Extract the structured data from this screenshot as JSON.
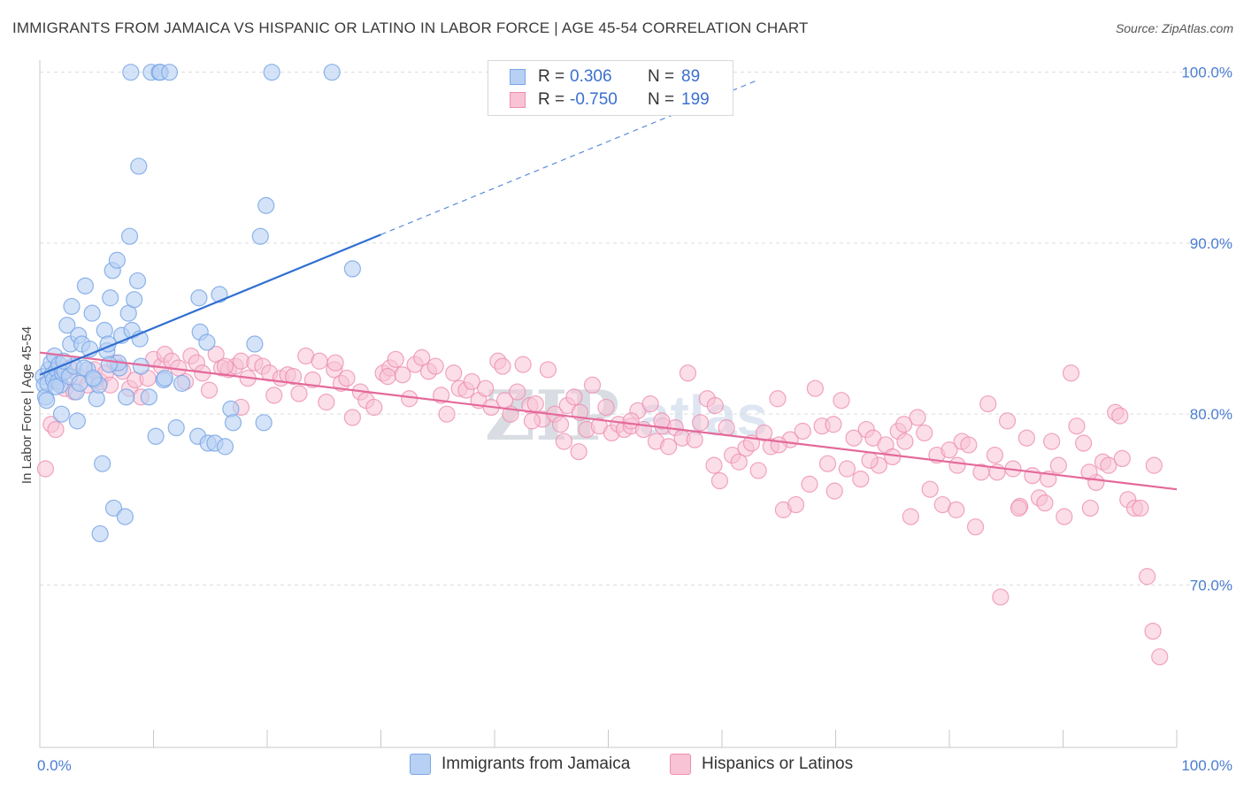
{
  "title": "IMMIGRANTS FROM JAMAICA VS HISPANIC OR LATINO IN LABOR FORCE | AGE 45-54 CORRELATION CHART",
  "source": "Source: ZipAtlas.com",
  "watermark": {
    "left": "ZIP",
    "right": "atlas"
  },
  "colors": {
    "blue": "#7aa7e6",
    "blue_fill": "#b7d0f3",
    "blue_line": "#2f6fd1",
    "pink": "#ee8fb0",
    "pink_fill": "#f7c3d5",
    "pink_line": "#e4699a",
    "tick": "#4a7dd1"
  },
  "legend": [
    {
      "r_label": "R =",
      "r_value": "0.306",
      "n_label": "N =",
      "n_value": "89"
    },
    {
      "r_label": "R =",
      "r_value": "-0.750",
      "n_label": "N =",
      "n_value": "199"
    }
  ],
  "bottom_legend": [
    "Immigrants from Jamaica",
    "Hispanics or Latinos"
  ],
  "chart_data": {
    "type": "scatter",
    "xlabel": "",
    "ylabel": "In Labor Force | Age 45-54",
    "xlim": [
      0,
      100
    ],
    "ylim": [
      60.5,
      100.5
    ],
    "x_tick_labels": [
      "0.0%",
      "100.0%"
    ],
    "y_ticks": [
      70,
      80,
      90,
      100
    ],
    "y_tick_labels": [
      "70.0%",
      "80.0%",
      "90.0%",
      "100.0%"
    ],
    "grid": true,
    "series": [
      {
        "name": "Immigrants from Jamaica",
        "trend": {
          "x0": 0,
          "y0": 82.3,
          "x1": 30,
          "y1": 90.5,
          "dashed_to_x": 63,
          "dashed_to_y": 99.5
        },
        "points": [
          [
            0.3,
            82.2
          ],
          [
            0.4,
            81.7
          ],
          [
            0.5,
            81.0
          ],
          [
            0.6,
            80.8
          ],
          [
            0.7,
            81.8
          ],
          [
            0.8,
            82.6
          ],
          [
            1.0,
            83.0
          ],
          [
            1.1,
            82.3
          ],
          [
            1.2,
            82.0
          ],
          [
            1.3,
            83.4
          ],
          [
            1.5,
            82.6
          ],
          [
            1.6,
            81.9
          ],
          [
            1.7,
            82.9
          ],
          [
            1.8,
            81.7
          ],
          [
            1.9,
            80.0
          ],
          [
            2.0,
            82.4
          ],
          [
            2.2,
            82.5
          ],
          [
            2.4,
            85.2
          ],
          [
            2.6,
            82.2
          ],
          [
            2.7,
            84.1
          ],
          [
            2.8,
            86.3
          ],
          [
            3.0,
            82.8
          ],
          [
            3.2,
            81.3
          ],
          [
            3.3,
            79.6
          ],
          [
            3.4,
            84.6
          ],
          [
            3.5,
            81.8
          ],
          [
            3.7,
            84.1
          ],
          [
            4.0,
            87.5
          ],
          [
            4.2,
            82.6
          ],
          [
            4.4,
            83.8
          ],
          [
            4.6,
            85.9
          ],
          [
            4.8,
            82.0
          ],
          [
            5.0,
            80.9
          ],
          [
            5.2,
            81.7
          ],
          [
            5.5,
            77.1
          ],
          [
            5.7,
            84.9
          ],
          [
            5.9,
            83.7
          ],
          [
            6.0,
            84.1
          ],
          [
            6.2,
            86.8
          ],
          [
            6.4,
            88.4
          ],
          [
            6.5,
            74.5
          ],
          [
            6.8,
            89.0
          ],
          [
            7.0,
            82.7
          ],
          [
            7.2,
            84.6
          ],
          [
            7.5,
            74.0
          ],
          [
            7.6,
            81.0
          ],
          [
            7.8,
            85.9
          ],
          [
            7.9,
            90.4
          ],
          [
            8.0,
            100.0
          ],
          [
            8.1,
            84.9
          ],
          [
            8.3,
            86.7
          ],
          [
            8.6,
            87.8
          ],
          [
            8.7,
            94.5
          ],
          [
            8.8,
            84.4
          ],
          [
            8.9,
            82.8
          ],
          [
            9.6,
            81.0
          ],
          [
            10.2,
            78.7
          ],
          [
            9.8,
            100.0
          ],
          [
            10.5,
            100.0
          ],
          [
            10.6,
            100.0
          ],
          [
            10.9,
            82.0
          ],
          [
            11.0,
            82.1
          ],
          [
            11.4,
            100.0
          ],
          [
            12.0,
            79.2
          ],
          [
            12.5,
            81.8
          ],
          [
            13.9,
            78.7
          ],
          [
            14.0,
            86.8
          ],
          [
            14.1,
            84.8
          ],
          [
            14.7,
            84.2
          ],
          [
            14.8,
            78.3
          ],
          [
            15.4,
            78.3
          ],
          [
            15.8,
            87.0
          ],
          [
            16.3,
            78.1
          ],
          [
            16.8,
            80.3
          ],
          [
            17.0,
            79.5
          ],
          [
            18.9,
            84.1
          ],
          [
            19.4,
            90.4
          ],
          [
            19.7,
            79.5
          ],
          [
            19.9,
            92.2
          ],
          [
            20.4,
            100.0
          ],
          [
            25.7,
            100.0
          ],
          [
            27.5,
            88.5
          ],
          [
            5.3,
            73.0
          ],
          [
            3.9,
            82.7
          ],
          [
            6.9,
            83.0
          ],
          [
            1.4,
            81.6
          ],
          [
            2.1,
            83.1
          ],
          [
            4.7,
            82.1
          ],
          [
            6.1,
            82.9
          ]
        ]
      },
      {
        "name": "Hispanics or Latinos",
        "trend": {
          "x0": 0,
          "y0": 83.6,
          "x1": 100,
          "y1": 75.6
        },
        "points": [
          [
            0.5,
            76.8
          ],
          [
            1.0,
            79.4
          ],
          [
            1.4,
            79.1
          ],
          [
            1.8,
            82.3
          ],
          [
            2.2,
            81.5
          ],
          [
            2.6,
            82.7
          ],
          [
            3.0,
            81.3
          ],
          [
            3.4,
            82.2
          ],
          [
            4.2,
            81.7
          ],
          [
            4.8,
            82.6
          ],
          [
            5.3,
            81.9
          ],
          [
            5.8,
            82.4
          ],
          [
            6.2,
            81.7
          ],
          [
            6.6,
            83.0
          ],
          [
            7.3,
            82.5
          ],
          [
            7.9,
            81.5
          ],
          [
            8.4,
            82.0
          ],
          [
            8.9,
            81.0
          ],
          [
            9.5,
            82.1
          ],
          [
            10.0,
            83.2
          ],
          [
            10.7,
            82.8
          ],
          [
            11.0,
            83.5
          ],
          [
            11.6,
            83.1
          ],
          [
            12.2,
            82.7
          ],
          [
            12.8,
            81.9
          ],
          [
            13.3,
            83.4
          ],
          [
            13.8,
            83.0
          ],
          [
            14.3,
            82.4
          ],
          [
            14.9,
            81.4
          ],
          [
            15.5,
            83.5
          ],
          [
            16.0,
            82.7
          ],
          [
            16.6,
            82.6
          ],
          [
            17.2,
            82.8
          ],
          [
            17.7,
            83.1
          ],
          [
            18.3,
            82.1
          ],
          [
            18.9,
            83.0
          ],
          [
            19.6,
            82.8
          ],
          [
            20.2,
            82.4
          ],
          [
            20.6,
            81.1
          ],
          [
            21.2,
            82.1
          ],
          [
            21.8,
            82.3
          ],
          [
            22.3,
            82.2
          ],
          [
            22.8,
            81.2
          ],
          [
            23.4,
            83.4
          ],
          [
            24.0,
            82.0
          ],
          [
            24.6,
            83.1
          ],
          [
            25.2,
            80.7
          ],
          [
            25.9,
            82.6
          ],
          [
            26.5,
            81.8
          ],
          [
            27.0,
            82.1
          ],
          [
            27.5,
            79.8
          ],
          [
            28.2,
            81.3
          ],
          [
            28.7,
            80.8
          ],
          [
            29.4,
            80.4
          ],
          [
            30.2,
            82.4
          ],
          [
            30.8,
            82.7
          ],
          [
            31.3,
            83.2
          ],
          [
            31.9,
            82.3
          ],
          [
            32.5,
            80.9
          ],
          [
            33.0,
            82.9
          ],
          [
            33.6,
            83.3
          ],
          [
            34.2,
            82.5
          ],
          [
            34.8,
            82.8
          ],
          [
            35.3,
            81.1
          ],
          [
            35.8,
            80.0
          ],
          [
            36.4,
            82.4
          ],
          [
            36.9,
            81.5
          ],
          [
            37.5,
            81.4
          ],
          [
            38.0,
            81.9
          ],
          [
            38.6,
            80.8
          ],
          [
            39.2,
            81.5
          ],
          [
            39.7,
            80.4
          ],
          [
            40.3,
            83.1
          ],
          [
            40.9,
            80.8
          ],
          [
            41.4,
            80.0
          ],
          [
            42.0,
            81.3
          ],
          [
            42.5,
            82.9
          ],
          [
            43.1,
            80.5
          ],
          [
            43.6,
            80.6
          ],
          [
            44.2,
            79.7
          ],
          [
            44.7,
            82.6
          ],
          [
            45.3,
            80.0
          ],
          [
            45.8,
            79.4
          ],
          [
            46.4,
            80.5
          ],
          [
            47.0,
            81.0
          ],
          [
            47.5,
            80.1
          ],
          [
            48.1,
            79.1
          ],
          [
            48.6,
            81.7
          ],
          [
            49.2,
            79.3
          ],
          [
            49.8,
            80.4
          ],
          [
            50.3,
            78.9
          ],
          [
            50.9,
            79.4
          ],
          [
            51.4,
            79.1
          ],
          [
            52.0,
            79.3
          ],
          [
            52.6,
            80.2
          ],
          [
            53.1,
            79.1
          ],
          [
            53.7,
            80.6
          ],
          [
            54.2,
            78.4
          ],
          [
            54.8,
            79.3
          ],
          [
            55.3,
            78.1
          ],
          [
            55.9,
            79.2
          ],
          [
            56.5,
            78.6
          ],
          [
            57.0,
            82.4
          ],
          [
            57.6,
            78.5
          ],
          [
            58.1,
            79.5
          ],
          [
            58.7,
            80.9
          ],
          [
            59.3,
            77.0
          ],
          [
            59.8,
            76.1
          ],
          [
            60.4,
            79.2
          ],
          [
            60.9,
            77.6
          ],
          [
            61.5,
            77.2
          ],
          [
            62.1,
            78.0
          ],
          [
            62.6,
            78.3
          ],
          [
            63.2,
            76.7
          ],
          [
            63.7,
            78.9
          ],
          [
            64.3,
            78.1
          ],
          [
            64.9,
            80.9
          ],
          [
            65.4,
            74.4
          ],
          [
            66.0,
            78.5
          ],
          [
            66.5,
            74.7
          ],
          [
            67.1,
            79.0
          ],
          [
            67.7,
            75.9
          ],
          [
            68.2,
            81.5
          ],
          [
            68.8,
            79.3
          ],
          [
            69.3,
            77.1
          ],
          [
            69.9,
            75.5
          ],
          [
            70.5,
            80.8
          ],
          [
            71.0,
            76.8
          ],
          [
            71.6,
            78.6
          ],
          [
            72.2,
            76.2
          ],
          [
            72.7,
            79.1
          ],
          [
            73.3,
            78.6
          ],
          [
            73.8,
            77.0
          ],
          [
            74.4,
            78.2
          ],
          [
            75.0,
            77.5
          ],
          [
            75.5,
            79.0
          ],
          [
            76.1,
            78.4
          ],
          [
            76.6,
            74.0
          ],
          [
            77.2,
            79.8
          ],
          [
            77.8,
            78.9
          ],
          [
            78.3,
            75.6
          ],
          [
            78.9,
            77.6
          ],
          [
            79.4,
            74.7
          ],
          [
            80.0,
            77.9
          ],
          [
            80.6,
            74.4
          ],
          [
            81.1,
            78.4
          ],
          [
            81.7,
            78.2
          ],
          [
            82.3,
            73.4
          ],
          [
            82.8,
            76.6
          ],
          [
            83.4,
            80.6
          ],
          [
            84.0,
            77.6
          ],
          [
            84.5,
            69.3
          ],
          [
            85.1,
            79.6
          ],
          [
            85.6,
            76.8
          ],
          [
            86.2,
            74.6
          ],
          [
            86.8,
            78.6
          ],
          [
            87.3,
            76.4
          ],
          [
            87.9,
            75.1
          ],
          [
            88.4,
            74.8
          ],
          [
            89.0,
            78.4
          ],
          [
            89.6,
            77.0
          ],
          [
            90.1,
            74.0
          ],
          [
            90.7,
            82.4
          ],
          [
            91.2,
            79.3
          ],
          [
            91.8,
            78.3
          ],
          [
            92.4,
            74.5
          ],
          [
            92.9,
            76.0
          ],
          [
            93.5,
            77.2
          ],
          [
            94.0,
            77.0
          ],
          [
            94.6,
            80.1
          ],
          [
            95.2,
            77.4
          ],
          [
            95.7,
            75.0
          ],
          [
            96.3,
            74.5
          ],
          [
            96.8,
            74.5
          ],
          [
            97.4,
            70.5
          ],
          [
            97.9,
            67.3
          ],
          [
            98.5,
            65.8
          ],
          [
            98.0,
            77.0
          ],
          [
            16.3,
            82.8
          ],
          [
            17.7,
            80.4
          ],
          [
            26.0,
            83.0
          ],
          [
            30.6,
            82.2
          ],
          [
            40.7,
            82.8
          ],
          [
            43.3,
            79.6
          ],
          [
            46.1,
            78.4
          ],
          [
            47.4,
            77.8
          ],
          [
            52.0,
            79.6
          ],
          [
            54.7,
            79.6
          ],
          [
            59.4,
            80.5
          ],
          [
            65.0,
            78.2
          ],
          [
            69.8,
            79.4
          ],
          [
            73.0,
            77.3
          ],
          [
            76.0,
            79.4
          ],
          [
            80.7,
            77.0
          ],
          [
            84.2,
            76.6
          ],
          [
            88.7,
            76.2
          ],
          [
            92.3,
            76.6
          ],
          [
            95.0,
            79.9
          ],
          [
            86.1,
            74.5
          ]
        ]
      }
    ]
  }
}
